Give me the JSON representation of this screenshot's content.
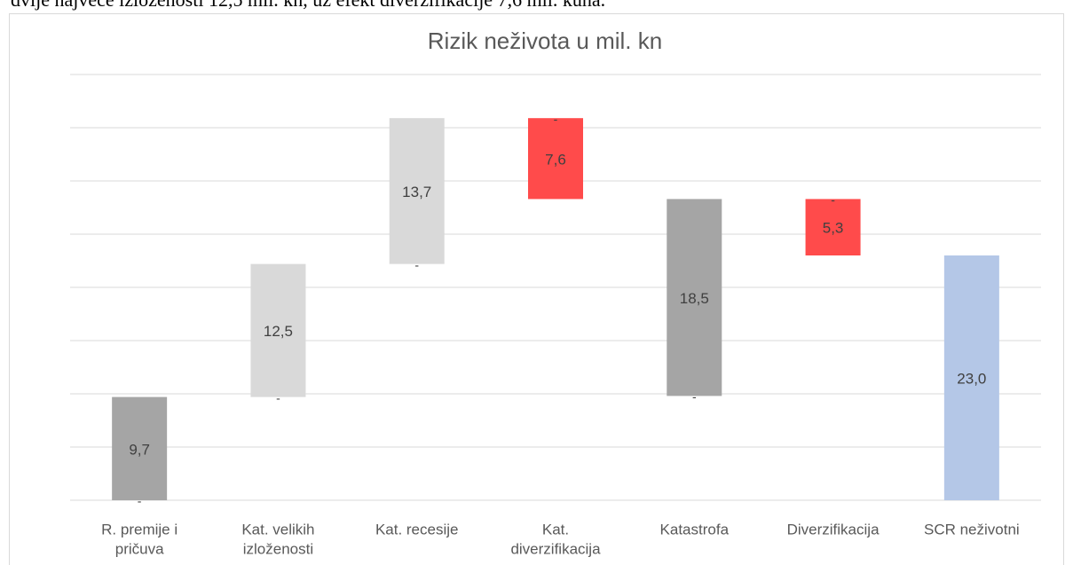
{
  "page_text": "dvije najveće izloženosti 12,5 mil. kn, uz efekt diverzifikacije 7,6 mil. kuna.",
  "chart_data": {
    "type": "waterfall",
    "title": "Rizik neživota u mil. kn",
    "categories": [
      [
        "R. premije i",
        "pričuva"
      ],
      [
        "Kat. velikih",
        "izloženosti"
      ],
      [
        "Kat. recesije"
      ],
      [
        "Kat.",
        "diverzifikacija"
      ],
      [
        "Katastrofa"
      ],
      [
        "Diverzifikacija"
      ],
      [
        "SCR neživotni"
      ]
    ],
    "values": [
      9.7,
      12.5,
      13.7,
      7.6,
      18.5,
      5.3,
      23.0
    ],
    "value_labels": [
      "9,7",
      "12,5",
      "13,7",
      "7,6",
      "18,5",
      "5,3",
      "23,0"
    ],
    "steps": [
      "up",
      "up",
      "up",
      "down",
      "group",
      "down",
      "total"
    ],
    "colors": [
      "#a5a5a5",
      "#d9d9d9",
      "#d9d9d9",
      "#ff4b4b",
      "#a5a5a5",
      "#ff4b4b",
      "#b4c7e7"
    ],
    "base_labels": [
      "-",
      "-",
      "-",
      "-",
      "-",
      "-",
      null
    ],
    "ylim": [
      0,
      40
    ],
    "yticks": [
      0,
      5,
      10,
      15,
      20,
      25,
      30,
      35,
      40
    ],
    "grid": true,
    "ytick_labels": false
  }
}
